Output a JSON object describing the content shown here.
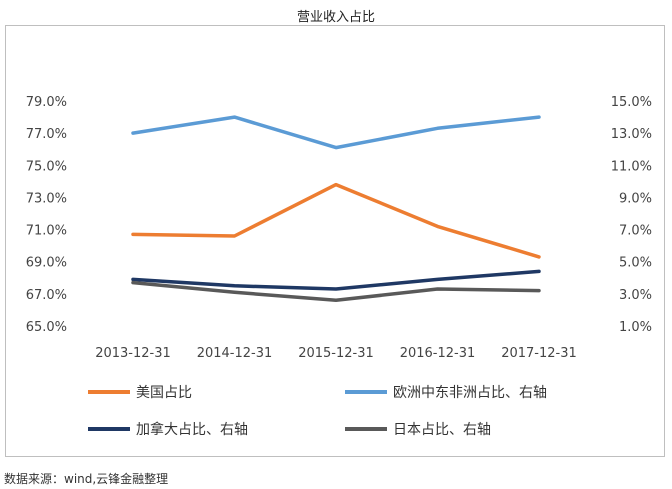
{
  "chart_data": {
    "type": "line",
    "title": "营业收入占比",
    "categories": [
      "2013-12-31",
      "2014-12-31",
      "2015-12-31",
      "2016-12-31",
      "2017-12-31"
    ],
    "left_axis": {
      "ticks": [
        "79.0%",
        "77.0%",
        "75.0%",
        "73.0%",
        "71.0%",
        "69.0%",
        "67.0%",
        "65.0%"
      ],
      "ylim": [
        65.0,
        79.0
      ]
    },
    "right_axis": {
      "ticks": [
        "15.0%",
        "13.0%",
        "11.0%",
        "9.0%",
        "7.0%",
        "5.0%",
        "3.0%",
        "1.0%"
      ],
      "ylim": [
        1.0,
        15.0
      ]
    },
    "grid": false,
    "legend_placement": "bottom",
    "series": [
      {
        "name": "美国占比",
        "axis": "left",
        "color": "#ED7D31",
        "values": [
          70.7,
          70.6,
          73.8,
          71.2,
          69.3
        ]
      },
      {
        "name": "欧洲中东非洲占比、右轴",
        "axis": "right",
        "color": "#5B9BD5",
        "values": [
          13.0,
          14.0,
          12.1,
          13.3,
          14.0
        ]
      },
      {
        "name": "加拿大占比、右轴",
        "axis": "right",
        "color": "#1F3864",
        "values": [
          3.9,
          3.5,
          3.3,
          3.9,
          4.4
        ]
      },
      {
        "name": "日本占比、右轴",
        "axis": "right",
        "color": "#595959",
        "values": [
          3.7,
          3.1,
          2.6,
          3.3,
          3.2
        ]
      }
    ]
  },
  "source_note": "数据来源：wind,云锋金融整理"
}
